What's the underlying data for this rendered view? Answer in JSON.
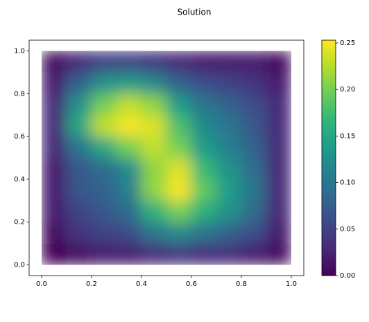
{
  "chart_data": {
    "type": "heatmap",
    "title": "Solution",
    "colormap": "viridis",
    "x": [
      0.05,
      0.15,
      0.25,
      0.35,
      0.45,
      0.55,
      0.65,
      0.75,
      0.85,
      0.95
    ],
    "y": [
      0.05,
      0.15,
      0.25,
      0.35,
      0.45,
      0.55,
      0.65,
      0.75,
      0.85,
      0.95
    ],
    "z": [
      [
        0.0,
        0.01,
        0.02,
        0.02,
        0.03,
        0.04,
        0.03,
        0.03,
        0.02,
        0.01
      ],
      [
        0.01,
        0.04,
        0.05,
        0.06,
        0.1,
        0.12,
        0.1,
        0.08,
        0.06,
        0.02
      ],
      [
        0.02,
        0.05,
        0.07,
        0.09,
        0.16,
        0.2,
        0.16,
        0.13,
        0.09,
        0.03
      ],
      [
        0.02,
        0.07,
        0.08,
        0.11,
        0.21,
        0.25,
        0.19,
        0.14,
        0.1,
        0.03
      ],
      [
        0.02,
        0.07,
        0.09,
        0.12,
        0.21,
        0.24,
        0.17,
        0.13,
        0.09,
        0.03
      ],
      [
        0.03,
        0.1,
        0.15,
        0.2,
        0.23,
        0.2,
        0.14,
        0.11,
        0.08,
        0.03
      ],
      [
        0.03,
        0.15,
        0.23,
        0.25,
        0.24,
        0.18,
        0.12,
        0.1,
        0.07,
        0.03
      ],
      [
        0.03,
        0.13,
        0.2,
        0.23,
        0.21,
        0.14,
        0.1,
        0.08,
        0.06,
        0.03
      ],
      [
        0.02,
        0.08,
        0.13,
        0.14,
        0.12,
        0.08,
        0.06,
        0.05,
        0.04,
        0.02
      ],
      [
        0.01,
        0.03,
        0.05,
        0.05,
        0.04,
        0.03,
        0.02,
        0.02,
        0.02,
        0.01
      ]
    ],
    "xlim": [
      -0.05,
      1.05
    ],
    "ylim": [
      -0.05,
      1.05
    ],
    "xticks": [
      {
        "value": 0,
        "label": "0.0"
      },
      {
        "value": 0.2,
        "label": "0.2"
      },
      {
        "value": 0.4,
        "label": "0.4"
      },
      {
        "value": 0.6,
        "label": "0.6"
      },
      {
        "value": 0.8,
        "label": "0.8"
      },
      {
        "value": 1,
        "label": "1.0"
      }
    ],
    "yticks": [
      {
        "value": 0,
        "label": "0.0"
      },
      {
        "value": 0.2,
        "label": "0.2"
      },
      {
        "value": 0.4,
        "label": "0.4"
      },
      {
        "value": 0.6,
        "label": "0.6"
      },
      {
        "value": 0.8,
        "label": "0.8"
      },
      {
        "value": 1,
        "label": "1.0"
      }
    ],
    "clim": [
      0,
      0.253
    ],
    "cticks": [
      {
        "value": 0,
        "label": "0.00"
      },
      {
        "value": 0.05,
        "label": "0.05"
      },
      {
        "value": 0.1,
        "label": "0.10"
      },
      {
        "value": 0.15,
        "label": "0.15"
      },
      {
        "value": 0.2,
        "label": "0.20"
      },
      {
        "value": 0.25,
        "label": "0.25"
      }
    ]
  }
}
